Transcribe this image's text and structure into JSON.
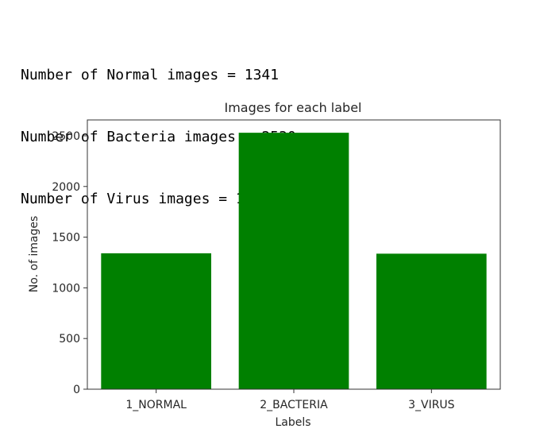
{
  "console": {
    "lines": [
      "Number of Normal images = 1341",
      "Number of Bacteria images = 2530",
      "Number of Virus images = 1337"
    ]
  },
  "colors": {
    "bar": "#008000",
    "axis": "#333333",
    "text": "#262626"
  },
  "chart_data": {
    "type": "bar",
    "title": "Images for each label",
    "xlabel": "Labels",
    "ylabel": "No. of images",
    "categories": [
      "1_NORMAL",
      "2_BACTERIA",
      "3_VIRUS"
    ],
    "values": [
      1341,
      2530,
      1337
    ],
    "ylim": [
      0,
      2656.5
    ],
    "yticks": [
      0,
      500,
      1000,
      1500,
      2000,
      2500
    ],
    "grid": false
  }
}
